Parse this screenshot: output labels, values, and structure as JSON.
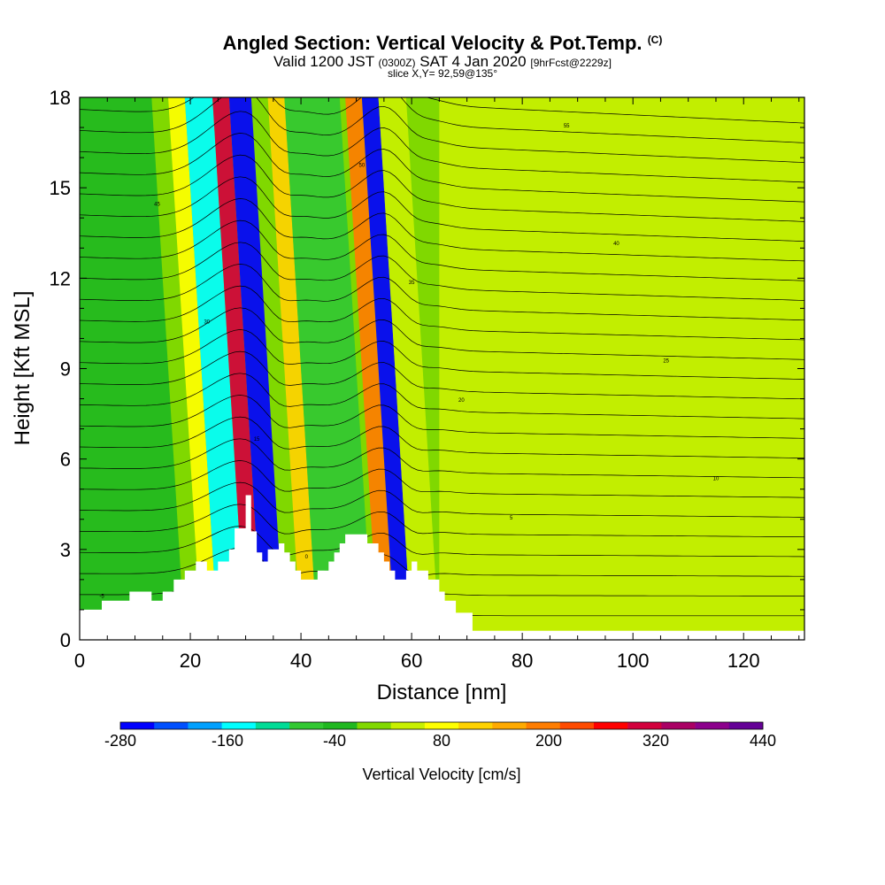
{
  "header": {
    "title": "Angled Section: Vertical Velocity & Pot.Temp.",
    "title_mark": "(C)",
    "valid_prefix": "Valid 1200 JST",
    "valid_zulu": "(0300Z)",
    "valid_date": "SAT 4 Jan 2020",
    "valid_fcst": "[9hrFcst@2229z]",
    "slice": "slice X,Y= 92,59@135°"
  },
  "chart_data": {
    "type": "heatmap",
    "title": "Angled Section: Vertical Velocity & Pot.Temp.",
    "xlabel": "Distance [nm]",
    "ylabel": "Height [Kft MSL]",
    "xlim": [
      0,
      131
    ],
    "ylim": [
      0,
      18
    ],
    "x_ticks": [
      0,
      20,
      40,
      60,
      80,
      100,
      120
    ],
    "y_ticks": [
      0,
      3,
      6,
      9,
      12,
      15,
      18
    ],
    "grid": false,
    "colorbar": {
      "title": "Vertical Velocity [cm/s]",
      "levels": [
        -280,
        -240,
        -200,
        -160,
        -120,
        -80,
        -40,
        0,
        40,
        80,
        120,
        160,
        200,
        240,
        280,
        320,
        360,
        400,
        440
      ],
      "tick_labels": [
        "-280",
        "-160",
        "-40",
        "80",
        "200",
        "320",
        "440"
      ],
      "colors": [
        "#0000ff",
        "#0050ff",
        "#00a0ff",
        "#00ffff",
        "#00dc96",
        "#32c832",
        "#20b820",
        "#80d800",
        "#c8f000",
        "#ffff00",
        "#ffd200",
        "#ffaa00",
        "#ff7d00",
        "#ff4b00",
        "#ff0000",
        "#d2003c",
        "#aa0064",
        "#8c008c",
        "#640096"
      ]
    },
    "vertical_velocity_bands": [
      {
        "x": [
          0,
          19
        ],
        "value_cm_s": -20,
        "note": "weak descent near surface at low levels"
      },
      {
        "x": [
          22,
          25
        ],
        "value_cm_s": 110
      },
      {
        "x": [
          25,
          30
        ],
        "value_cm_s": -150
      },
      {
        "x": [
          30,
          33
        ],
        "value_cm_s": 320
      },
      {
        "x": [
          33,
          37
        ],
        "value_cm_s": -250
      },
      {
        "x": [
          40,
          43
        ],
        "value_cm_s": 130
      },
      {
        "x": [
          43,
          53
        ],
        "value_cm_s": -60
      },
      {
        "x": [
          54,
          57
        ],
        "value_cm_s": 200
      },
      {
        "x": [
          57,
          60
        ],
        "value_cm_s": -260
      },
      {
        "x": [
          60,
          65
        ],
        "value_cm_s": 60
      },
      {
        "x": [
          65,
          131
        ],
        "value_cm_s": 40
      }
    ],
    "terrain_profile": {
      "x": [
        0,
        4,
        9,
        13,
        15,
        17,
        19,
        21,
        23,
        25,
        27,
        28,
        30,
        31,
        32,
        33,
        34,
        36,
        37,
        38,
        39,
        40,
        43,
        45,
        46,
        47,
        48,
        50,
        52,
        54,
        55,
        56,
        57,
        59,
        60,
        61,
        63,
        65,
        66,
        68,
        71,
        131
      ],
      "height_kft": [
        1.0,
        1.3,
        1.6,
        1.3,
        1.6,
        2.0,
        2.3,
        2.6,
        2.3,
        2.6,
        3.0,
        3.7,
        4.8,
        3.6,
        2.9,
        2.6,
        3.0,
        3.2,
        2.9,
        2.6,
        2.3,
        2.0,
        2.3,
        2.6,
        2.9,
        3.2,
        3.5,
        3.5,
        3.2,
        2.9,
        2.6,
        2.3,
        2.0,
        2.3,
        2.6,
        2.3,
        2.0,
        1.6,
        1.3,
        0.9,
        0.3,
        0.3
      ]
    },
    "potential_temperature_contours": {
      "units": "C",
      "labels": [
        "-5",
        "0",
        "5",
        "10",
        "15",
        "20",
        "25",
        "30",
        "35",
        "40",
        "45",
        "50",
        "55"
      ]
    }
  }
}
